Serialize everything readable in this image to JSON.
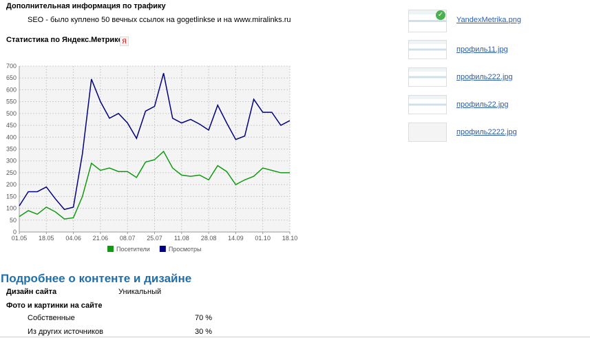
{
  "traffic": {
    "title": "Дополнительная информация по трафику",
    "text": "SEO - было куплено 50 вечных ссылок на gogetlinkse и на www.miralinks.ru"
  },
  "metrika": {
    "title": "Статистика по Яндекс.Метрике",
    "icon": "Я"
  },
  "chart_data": {
    "type": "line",
    "categories": [
      "01.05",
      null,
      null,
      "18.05",
      null,
      null,
      "04.06",
      null,
      null,
      "21.06",
      null,
      null,
      "08.07",
      null,
      null,
      "25.07",
      null,
      null,
      "11.08",
      null,
      null,
      "28.08",
      null,
      null,
      "14.09",
      null,
      null,
      "01.10",
      null,
      null,
      "18.10"
    ],
    "series": [
      {
        "name": "Посетители",
        "color": "#119911",
        "values": [
          65,
          90,
          75,
          105,
          85,
          55,
          60,
          150,
          290,
          260,
          270,
          255,
          255,
          230,
          295,
          305,
          340,
          270,
          240,
          235,
          240,
          220,
          280,
          255,
          200,
          220,
          235,
          270,
          260,
          250,
          250
        ]
      },
      {
        "name": "Просмотры",
        "color": "#000080",
        "values": [
          110,
          170,
          170,
          190,
          140,
          95,
          105,
          330,
          645,
          550,
          480,
          500,
          460,
          395,
          510,
          530,
          670,
          480,
          460,
          475,
          455,
          430,
          535,
          460,
          390,
          405,
          560,
          505,
          505,
          450,
          470
        ]
      }
    ],
    "ylim": [
      0,
      700
    ],
    "yticks": [
      0,
      50,
      100,
      150,
      200,
      250,
      300,
      350,
      400,
      450,
      500,
      550,
      600,
      650,
      700
    ],
    "grid": true,
    "legend": "bottom"
  },
  "attachments": [
    "YandexMetrika.png",
    "профиль11.jpg",
    "профиль222.jpg",
    "профиль22.jpg",
    "профиль2222.jpg"
  ],
  "content": {
    "title": "Подробнее о контенте и дизайне",
    "design": {
      "label": "Дизайн сайта",
      "value": "Уникальный"
    },
    "photos": {
      "label": "Фото и картинки на сайте",
      "items": [
        {
          "label": "Собственные",
          "value": "70 %"
        },
        {
          "label": "Из других источников",
          "value": "30 %"
        }
      ]
    }
  }
}
